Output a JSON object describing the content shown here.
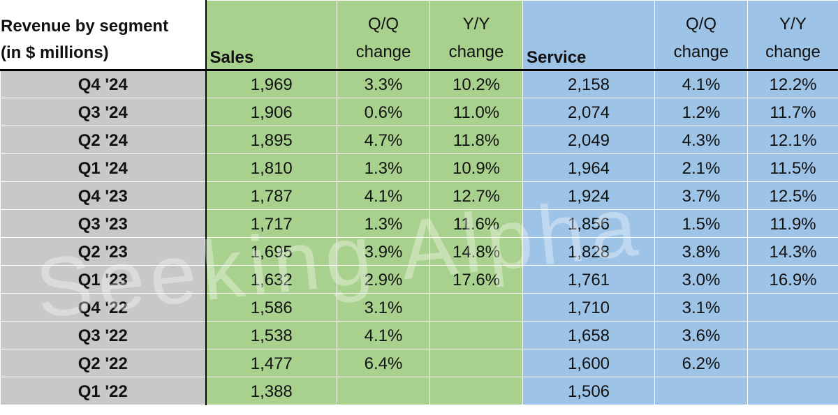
{
  "header": {
    "label_line1": "Revenue by segment",
    "label_line2": "(in $ millions)",
    "sales": "Sales",
    "service": "Service",
    "qq_line1": "Q/Q",
    "qq_line2": "change",
    "yy_line1": "Y/Y",
    "yy_line2": "change"
  },
  "rows": [
    {
      "period": "Q4 '24",
      "sales": "1,969",
      "sales_qq": "3.3%",
      "sales_yy": "10.2%",
      "service": "2,158",
      "service_qq": "4.1%",
      "service_yy": "12.2%"
    },
    {
      "period": "Q3 '24",
      "sales": "1,906",
      "sales_qq": "0.6%",
      "sales_yy": "11.0%",
      "service": "2,074",
      "service_qq": "1.2%",
      "service_yy": "11.7%"
    },
    {
      "period": "Q2 '24",
      "sales": "1,895",
      "sales_qq": "4.7%",
      "sales_yy": "11.8%",
      "service": "2,049",
      "service_qq": "4.3%",
      "service_yy": "12.1%"
    },
    {
      "period": "Q1 '24",
      "sales": "1,810",
      "sales_qq": "1.3%",
      "sales_yy": "10.9%",
      "service": "1,964",
      "service_qq": "2.1%",
      "service_yy": "11.5%"
    },
    {
      "period": "Q4 '23",
      "sales": "1,787",
      "sales_qq": "4.1%",
      "sales_yy": "12.7%",
      "service": "1,924",
      "service_qq": "3.7%",
      "service_yy": "12.5%"
    },
    {
      "period": "Q3 '23",
      "sales": "1,717",
      "sales_qq": "1.3%",
      "sales_yy": "11.6%",
      "service": "1,856",
      "service_qq": "1.5%",
      "service_yy": "11.9%"
    },
    {
      "period": "Q2 '23",
      "sales": "1,695",
      "sales_qq": "3.9%",
      "sales_yy": "14.8%",
      "service": "1,828",
      "service_qq": "3.8%",
      "service_yy": "14.3%"
    },
    {
      "period": "Q1 '23",
      "sales": "1,632",
      "sales_qq": "2.9%",
      "sales_yy": "17.6%",
      "service": "1,761",
      "service_qq": "3.0%",
      "service_yy": "16.9%"
    },
    {
      "period": "Q4 '22",
      "sales": "1,586",
      "sales_qq": "3.1%",
      "sales_yy": "",
      "service": "1,710",
      "service_qq": "3.1%",
      "service_yy": ""
    },
    {
      "period": "Q3 '22",
      "sales": "1,538",
      "sales_qq": "4.1%",
      "sales_yy": "",
      "service": "1,658",
      "service_qq": "3.6%",
      "service_yy": ""
    },
    {
      "period": "Q2 '22",
      "sales": "1,477",
      "sales_qq": "6.4%",
      "sales_yy": "",
      "service": "1,600",
      "service_qq": "6.2%",
      "service_yy": ""
    },
    {
      "period": "Q1 '22",
      "sales": "1,388",
      "sales_qq": "",
      "sales_yy": "",
      "service": "1,506",
      "service_qq": "",
      "service_yy": ""
    }
  ],
  "watermark": "Seeking Alpha",
  "colors": {
    "sales_fill": "#a9d18e",
    "service_fill": "#9dc3e6",
    "label_fill": "#c8c8c8"
  }
}
